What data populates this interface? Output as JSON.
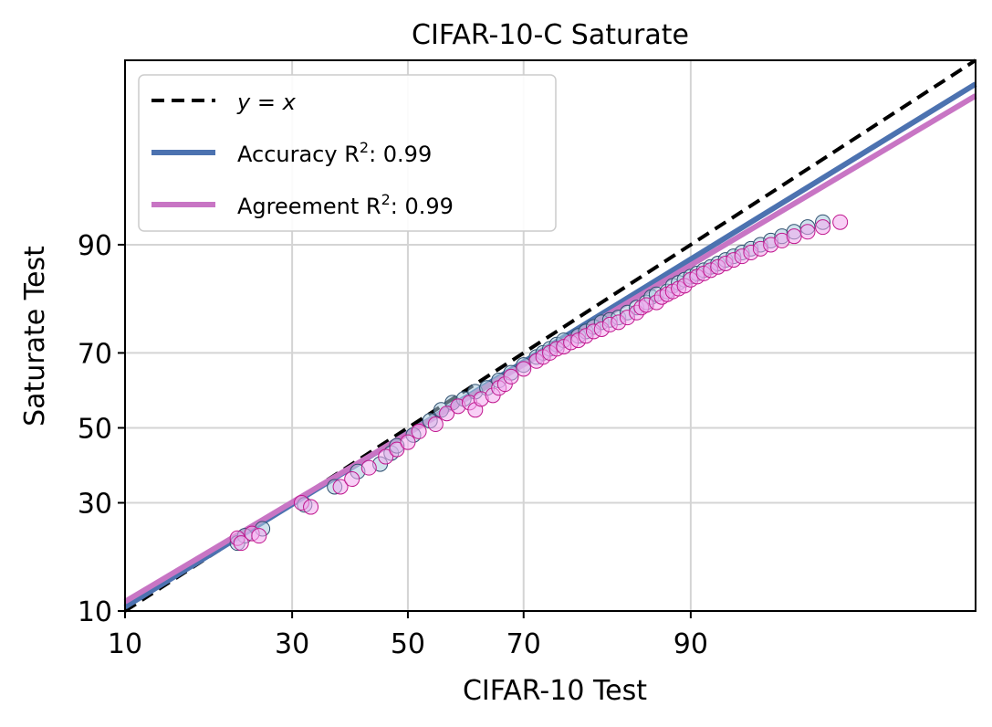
{
  "chart_data": {
    "type": "scatter",
    "title": "CIFAR-10-C Saturate",
    "xlabel": "CIFAR-10 Test",
    "ylabel": "Saturate Test",
    "scale": "probit",
    "xlim": [
      10,
      99.5
    ],
    "ylim": [
      10,
      99.5
    ],
    "xticks": [
      10,
      30,
      50,
      70,
      90
    ],
    "yticks": [
      10,
      30,
      50,
      70,
      90
    ],
    "tick_labels": {
      "x": [
        "10",
        "30",
        "50",
        "70",
        "90"
      ],
      "y": [
        "10",
        "30",
        "50",
        "70",
        "90"
      ]
    },
    "grid": true,
    "legend_position": "top-left",
    "legend": [
      {
        "label_main": "y = x",
        "kind": "reference"
      },
      {
        "label_main": "Accuracy R",
        "sup": "2",
        "label_tail": ": 0.99",
        "kind": "accuracy"
      },
      {
        "label_main": "Agreement R",
        "sup": "2",
        "label_tail": ": 0.99",
        "kind": "agreement"
      }
    ],
    "series": [
      {
        "name": "Accuracy",
        "color": "#4c72b0",
        "fit": [
          [
            10,
            10.5
          ],
          [
            99.5,
            99.2
          ]
        ],
        "points": [
          [
            22,
            21
          ],
          [
            23,
            22.5
          ],
          [
            25.5,
            24
          ],
          [
            32,
            29.5
          ],
          [
            37,
            34
          ],
          [
            41,
            38
          ],
          [
            45,
            40
          ],
          [
            47,
            43
          ],
          [
            48,
            45
          ],
          [
            51,
            48
          ],
          [
            54,
            52
          ],
          [
            56,
            55
          ],
          [
            58,
            57
          ],
          [
            60,
            58
          ],
          [
            62,
            60
          ],
          [
            64,
            61
          ],
          [
            66,
            63
          ],
          [
            68,
            65
          ],
          [
            70,
            67
          ],
          [
            72,
            69
          ],
          [
            73,
            70
          ],
          [
            74,
            71
          ],
          [
            75,
            72
          ],
          [
            76,
            73
          ],
          [
            78,
            74
          ],
          [
            79,
            75
          ],
          [
            80,
            76
          ],
          [
            81,
            77
          ],
          [
            82,
            77.5
          ],
          [
            83,
            78
          ],
          [
            84,
            79
          ],
          [
            85,
            80
          ],
          [
            86,
            81
          ],
          [
            86.5,
            82
          ],
          [
            87,
            82.5
          ],
          [
            88,
            83
          ],
          [
            88.5,
            84
          ],
          [
            89,
            84.5
          ],
          [
            89.5,
            85
          ],
          [
            90,
            85.5
          ],
          [
            90.5,
            86
          ],
          [
            91,
            86.5
          ],
          [
            91.5,
            87
          ],
          [
            92,
            87.5
          ],
          [
            92.5,
            88
          ],
          [
            93,
            88.5
          ],
          [
            93.5,
            89
          ],
          [
            94,
            89.5
          ],
          [
            94.5,
            90
          ],
          [
            95,
            90.5
          ],
          [
            95.5,
            91
          ],
          [
            96,
            91.5
          ],
          [
            96.5,
            92
          ],
          [
            97,
            92.5
          ]
        ]
      },
      {
        "name": "Agreement",
        "color": "#c875c4",
        "fit": [
          [
            10,
            11.2
          ],
          [
            99.5,
            99
          ]
        ],
        "points": [
          [
            22,
            22
          ],
          [
            22.5,
            21
          ],
          [
            24,
            23
          ],
          [
            25,
            22.5
          ],
          [
            31.5,
            30
          ],
          [
            33,
            29
          ],
          [
            38,
            34
          ],
          [
            40,
            36
          ],
          [
            43,
            39
          ],
          [
            46,
            42
          ],
          [
            48,
            44
          ],
          [
            50,
            46
          ],
          [
            52,
            49
          ],
          [
            55,
            51
          ],
          [
            57,
            54
          ],
          [
            59,
            56
          ],
          [
            61,
            57
          ],
          [
            62,
            55
          ],
          [
            63,
            58
          ],
          [
            65,
            59
          ],
          [
            66,
            61
          ],
          [
            67,
            62
          ],
          [
            68,
            64
          ],
          [
            70,
            66
          ],
          [
            72,
            68
          ],
          [
            73,
            69
          ],
          [
            74,
            70
          ],
          [
            75,
            71
          ],
          [
            76,
            71.5
          ],
          [
            77,
            72.5
          ],
          [
            78,
            73
          ],
          [
            79,
            74
          ],
          [
            80,
            75
          ],
          [
            81,
            75.5
          ],
          [
            82,
            76.5
          ],
          [
            83,
            77
          ],
          [
            84,
            78
          ],
          [
            85,
            79
          ],
          [
            85.5,
            80
          ],
          [
            86,
            80.5
          ],
          [
            87,
            81
          ],
          [
            87.5,
            82
          ],
          [
            88,
            82.5
          ],
          [
            88.5,
            83
          ],
          [
            89,
            83.5
          ],
          [
            89.5,
            84
          ],
          [
            90,
            85
          ],
          [
            90.5,
            85.5
          ],
          [
            91,
            86
          ],
          [
            91.5,
            86.5
          ],
          [
            92,
            87
          ],
          [
            92.5,
            87.5
          ],
          [
            93,
            88
          ],
          [
            93.5,
            88.5
          ],
          [
            94,
            89
          ],
          [
            94.5,
            89.5
          ],
          [
            95,
            90
          ],
          [
            95.5,
            90.5
          ],
          [
            96,
            91
          ],
          [
            96.5,
            91.5
          ],
          [
            97,
            92
          ],
          [
            97.5,
            92.5
          ]
        ]
      }
    ]
  }
}
